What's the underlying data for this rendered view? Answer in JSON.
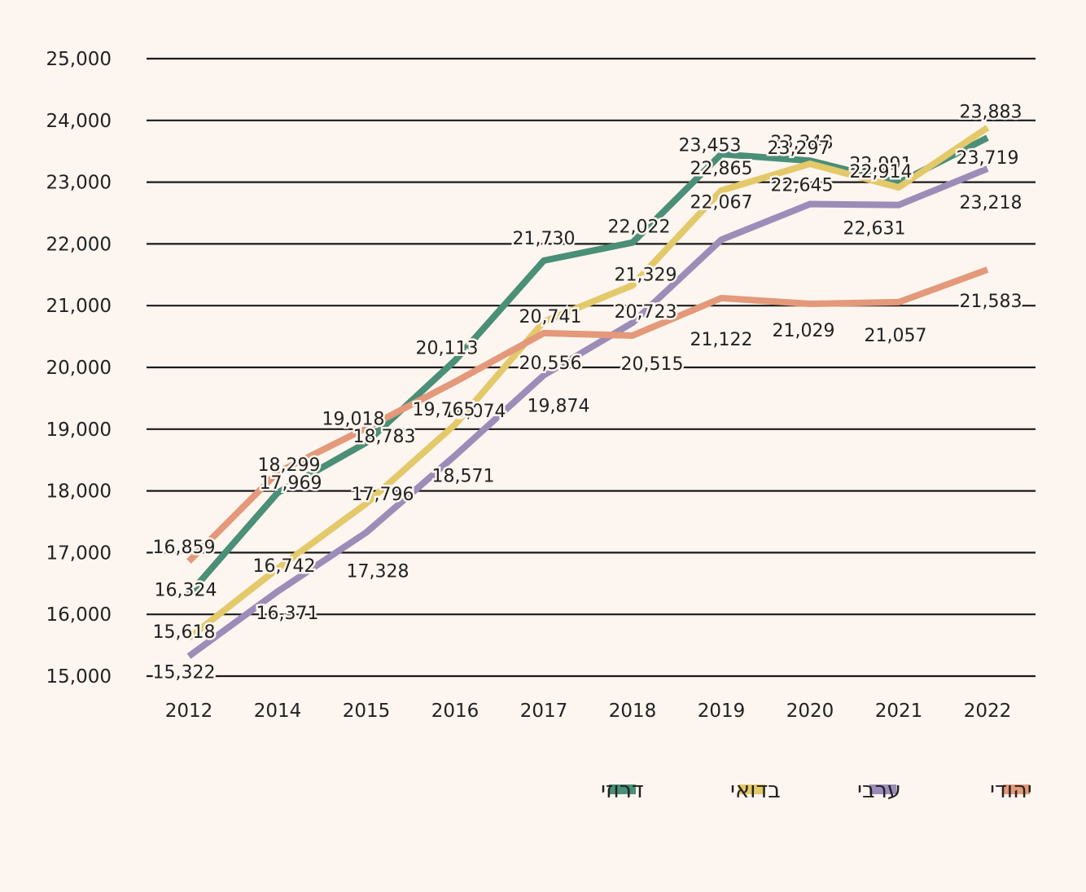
{
  "chart_data": {
    "type": "line",
    "title": "",
    "xlabel": "",
    "ylabel": "",
    "categories": [
      "2012",
      "2014",
      "2015",
      "2016",
      "2017",
      "2018",
      "2019",
      "2020",
      "2021",
      "2022"
    ],
    "ylim": [
      15000,
      25000
    ],
    "yticks": [
      15000,
      16000,
      17000,
      18000,
      19000,
      20000,
      21000,
      22000,
      23000,
      24000,
      25000
    ],
    "ytick_labels": [
      "15,000",
      "16,000",
      "17,000",
      "18,000",
      "19,000",
      "20,000",
      "21,000",
      "22,000",
      "23,000",
      "24,000",
      "25,000"
    ],
    "grid": true,
    "legend_position": "bottom",
    "series": [
      {
        "name": "דרוזי",
        "color": "#4a8f77",
        "values": [
          16324,
          17969,
          18783,
          20113,
          21730,
          22022,
          23453,
          23348,
          22991,
          23719
        ],
        "labels": [
          "16,324",
          "17,969",
          "18,783",
          "20,113",
          "21,730",
          "22,022",
          "23,453",
          "23,348",
          "22,991",
          "23,719"
        ]
      },
      {
        "name": "בדואי",
        "color": "#e3c969",
        "values": [
          15618,
          16742,
          17796,
          19074,
          20741,
          21329,
          22865,
          23297,
          22914,
          23883
        ],
        "labels": [
          "15,618",
          "16,742",
          "17,796",
          "19,074",
          "20,741",
          "21,329",
          "22,865",
          "23,297",
          "22,914",
          "23,883"
        ]
      },
      {
        "name": "ערבי",
        "color": "#9c8cb8",
        "values": [
          15322,
          16371,
          17328,
          18571,
          19874,
          20723,
          22067,
          22645,
          22631,
          23218
        ],
        "labels": [
          "15,322",
          "16,371",
          "17,328",
          "18,571",
          "19,874",
          "20,723",
          "22,067",
          "22,645",
          "22,631",
          "23,218"
        ]
      },
      {
        "name": "יהודי",
        "color": "#e3997a",
        "values": [
          16859,
          18299,
          19018,
          19765,
          20556,
          20515,
          21122,
          21029,
          21057,
          21583
        ],
        "labels": [
          "16,859",
          "18,299",
          "19,018",
          "19,765",
          "20,556",
          "20,515",
          "21,122",
          "21,029",
          "21,057",
          "21,583"
        ]
      }
    ]
  }
}
